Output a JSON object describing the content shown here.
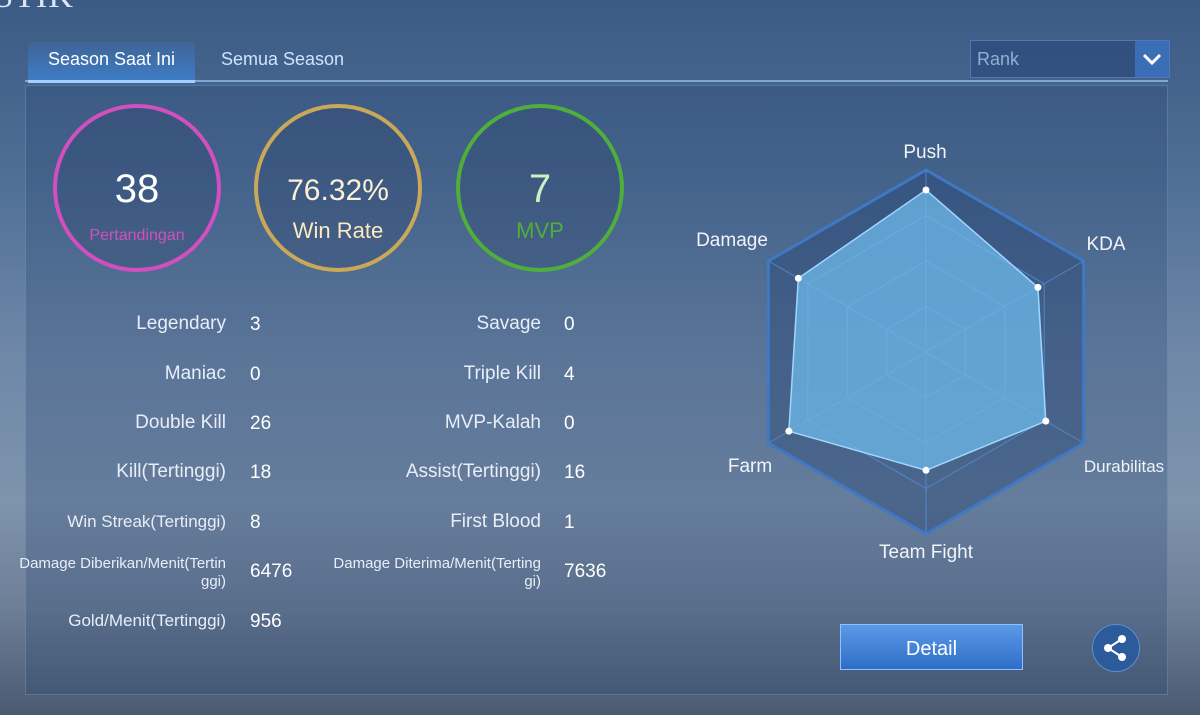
{
  "header": {
    "title": "ISTIK"
  },
  "tabs": [
    "Season Saat Ini",
    "Semua Season"
  ],
  "dropdown": {
    "label": "Rank"
  },
  "summary": [
    {
      "value": "38",
      "label": "Pertandingan",
      "color": "#d24fc0"
    },
    {
      "value": "76.32%",
      "label": "Win Rate",
      "color": "#c9a85a"
    },
    {
      "value": "7",
      "label": "MVP",
      "color": "#4fae3c"
    }
  ],
  "stats": {
    "left": [
      {
        "label": "Legendary",
        "value": "3"
      },
      {
        "label": "Maniac",
        "value": "0"
      },
      {
        "label": "Double Kill",
        "value": "26"
      },
      {
        "label": "Kill(Tertinggi)",
        "value": "18"
      },
      {
        "label": "Win Streak(Tertinggi)",
        "value": "8"
      },
      {
        "label": "Damage Diberikan/Menit(Tertinggi)",
        "value": "6476"
      },
      {
        "label": "Gold/Menit(Tertinggi)",
        "value": "956"
      }
    ],
    "right": [
      {
        "label": "Savage",
        "value": "0"
      },
      {
        "label": "Triple Kill",
        "value": "4"
      },
      {
        "label": "MVP-Kalah",
        "value": "0"
      },
      {
        "label": "Assist(Tertinggi)",
        "value": "16"
      },
      {
        "label": "First Blood",
        "value": "1"
      },
      {
        "label": "Damage Diterima/Menit(Tertinggi)",
        "value": "7636"
      }
    ]
  },
  "radar": {
    "axes": [
      "Push",
      "KDA",
      "Durabilitas",
      "Team Fight",
      "Farm",
      "Damage"
    ],
    "values": [
      89,
      71,
      76,
      65,
      87,
      81
    ],
    "rlim": [
      0,
      100
    ]
  },
  "button": {
    "label": "Detail"
  }
}
